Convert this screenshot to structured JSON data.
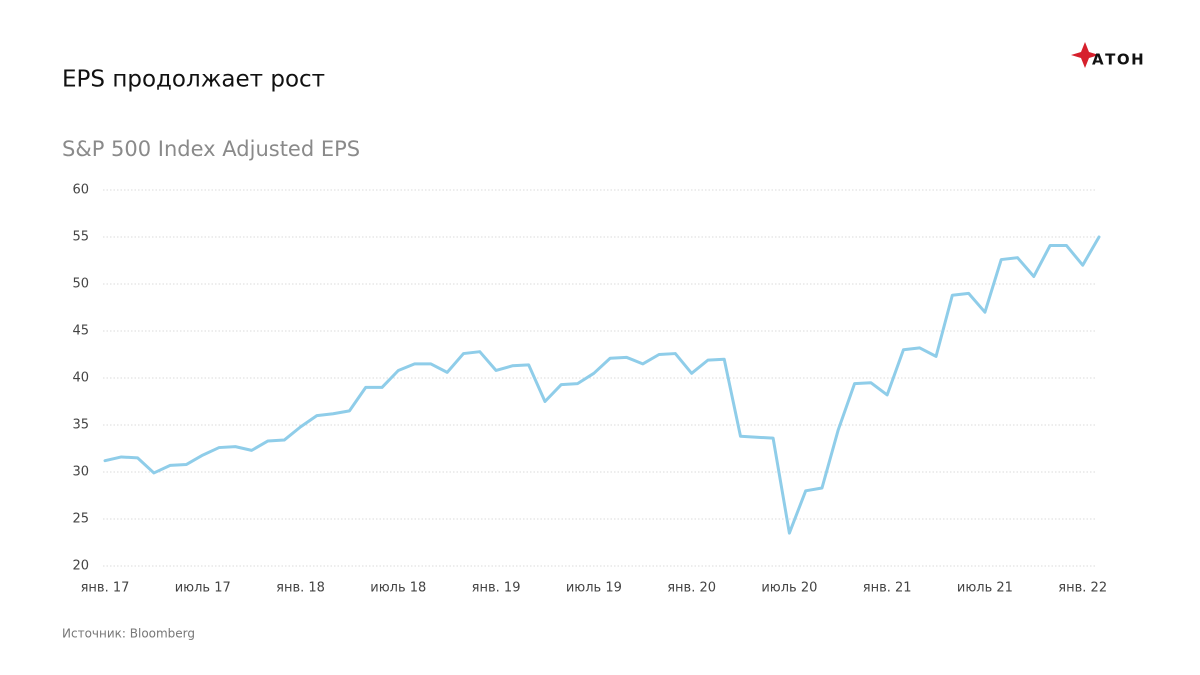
{
  "header": {
    "title": "EPS продолжает рост",
    "logo": "АТОН"
  },
  "source": "Источник: Bloomberg",
  "chart_data": {
    "type": "line",
    "title": "S&P 500 Index Adjusted EPS",
    "x": [
      "2017-01",
      "2017-02",
      "2017-03",
      "2017-04",
      "2017-05",
      "2017-06",
      "2017-07",
      "2017-08",
      "2017-09",
      "2017-10",
      "2017-11",
      "2017-12",
      "2018-01",
      "2018-02",
      "2018-03",
      "2018-04",
      "2018-05",
      "2018-06",
      "2018-07",
      "2018-08",
      "2018-09",
      "2018-10",
      "2018-11",
      "2018-12",
      "2019-01",
      "2019-02",
      "2019-03",
      "2019-04",
      "2019-05",
      "2019-06",
      "2019-07",
      "2019-08",
      "2019-09",
      "2019-10",
      "2019-11",
      "2019-12",
      "2020-01",
      "2020-02",
      "2020-03",
      "2020-04",
      "2020-05",
      "2020-06",
      "2020-07",
      "2020-08",
      "2020-09",
      "2020-10",
      "2020-11",
      "2020-12",
      "2021-01",
      "2021-02",
      "2021-03",
      "2021-04",
      "2021-05",
      "2021-06",
      "2021-07",
      "2021-08",
      "2021-09",
      "2021-10",
      "2021-11",
      "2021-12",
      "2022-01",
      "2022-02"
    ],
    "series": [
      {
        "name": "S&P 500 Index Adjusted EPS",
        "color": "#8fcde9",
        "values": [
          31.2,
          31.6,
          31.5,
          29.9,
          30.7,
          30.8,
          31.8,
          32.6,
          32.7,
          32.3,
          33.3,
          33.4,
          34.8,
          36.0,
          36.2,
          36.5,
          39.0,
          39.0,
          40.8,
          41.5,
          41.5,
          40.6,
          42.6,
          42.8,
          40.8,
          41.3,
          41.4,
          37.5,
          39.3,
          39.4,
          40.5,
          42.1,
          42.2,
          41.5,
          42.5,
          42.6,
          40.5,
          41.9,
          42.0,
          33.8,
          33.7,
          33.6,
          23.5,
          28.0,
          28.3,
          34.5,
          39.4,
          39.5,
          38.2,
          43.0,
          43.2,
          42.3,
          48.8,
          49.0,
          47.0,
          52.6,
          52.8,
          50.8,
          54.1,
          54.1,
          52.0,
          55.0
        ]
      }
    ],
    "xlim": [
      "2017-01",
      "2022-02"
    ],
    "xticks": [
      {
        "value": "2017-01",
        "label": "янв. 17"
      },
      {
        "value": "2017-07",
        "label": "июль 17"
      },
      {
        "value": "2018-01",
        "label": "янв. 18"
      },
      {
        "value": "2018-07",
        "label": "июль 18"
      },
      {
        "value": "2019-01",
        "label": "янв. 19"
      },
      {
        "value": "2019-07",
        "label": "июль 19"
      },
      {
        "value": "2020-01",
        "label": "янв. 20"
      },
      {
        "value": "2020-07",
        "label": "июль 20"
      },
      {
        "value": "2021-01",
        "label": "янв. 21"
      },
      {
        "value": "2021-07",
        "label": "июль 21"
      },
      {
        "value": "2022-01",
        "label": "янв. 22"
      }
    ],
    "ylim": [
      20,
      60
    ],
    "yticks": [
      20,
      25,
      30,
      35,
      40,
      45,
      50,
      55,
      60
    ],
    "grid": true
  }
}
